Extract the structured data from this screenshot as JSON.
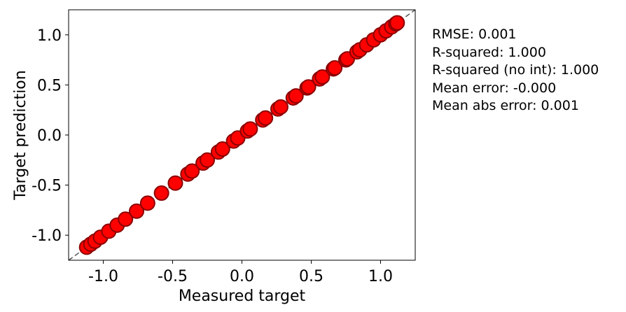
{
  "chart_data": {
    "type": "scatter",
    "title": "",
    "xlabel": "Measured target",
    "ylabel": "Target prediction",
    "xlim": [
      -1.25,
      1.25
    ],
    "ylim": [
      -1.25,
      1.25
    ],
    "xticks": [
      -1.0,
      -0.5,
      0.0,
      0.5,
      1.0
    ],
    "yticks": [
      -1.0,
      -0.5,
      0.0,
      0.5,
      1.0
    ],
    "xtick_labels": [
      "-1.0",
      "-0.5",
      "0.0",
      "0.5",
      "1.0"
    ],
    "ytick_labels": [
      "-1.0",
      "-0.5",
      "0.0",
      "0.5",
      "1.0"
    ],
    "reference_line": "y = x (dashed, gray)",
    "grid": false,
    "marker_color": "#ff0000",
    "marker_edge_color": "#8b0000",
    "points": [
      [
        -1.12,
        -1.12
      ],
      [
        -1.09,
        -1.09
      ],
      [
        -1.06,
        -1.06
      ],
      [
        -1.02,
        -1.02
      ],
      [
        -0.96,
        -0.96
      ],
      [
        -0.9,
        -0.9
      ],
      [
        -0.84,
        -0.84
      ],
      [
        -0.76,
        -0.76
      ],
      [
        -0.68,
        -0.68
      ],
      [
        -0.58,
        -0.58
      ],
      [
        -0.48,
        -0.48
      ],
      [
        -0.39,
        -0.39
      ],
      [
        -0.36,
        -0.36
      ],
      [
        -0.28,
        -0.28
      ],
      [
        -0.25,
        -0.25
      ],
      [
        -0.17,
        -0.17
      ],
      [
        -0.14,
        -0.14
      ],
      [
        -0.06,
        -0.06
      ],
      [
        -0.03,
        -0.03
      ],
      [
        0.04,
        0.04
      ],
      [
        0.06,
        0.06
      ],
      [
        0.15,
        0.15
      ],
      [
        0.17,
        0.17
      ],
      [
        0.26,
        0.26
      ],
      [
        0.28,
        0.28
      ],
      [
        0.37,
        0.37
      ],
      [
        0.39,
        0.39
      ],
      [
        0.47,
        0.47
      ],
      [
        0.48,
        0.48
      ],
      [
        0.56,
        0.56
      ],
      [
        0.58,
        0.58
      ],
      [
        0.66,
        0.66
      ],
      [
        0.67,
        0.67
      ],
      [
        0.75,
        0.75
      ],
      [
        0.76,
        0.76
      ],
      [
        0.83,
        0.83
      ],
      [
        0.85,
        0.85
      ],
      [
        0.9,
        0.9
      ],
      [
        0.95,
        0.95
      ],
      [
        1.0,
        1.0
      ],
      [
        1.04,
        1.04
      ],
      [
        1.08,
        1.08
      ],
      [
        1.11,
        1.11
      ],
      [
        1.12,
        1.12
      ]
    ]
  },
  "stats": {
    "rmse": "RMSE: 0.001",
    "r_squared": "R-squared: 1.000",
    "r_squared_no_int": "R-squared (no int): 1.000",
    "mean_error": "Mean error: -0.000",
    "mean_abs_error": "Mean abs error: 0.001"
  }
}
